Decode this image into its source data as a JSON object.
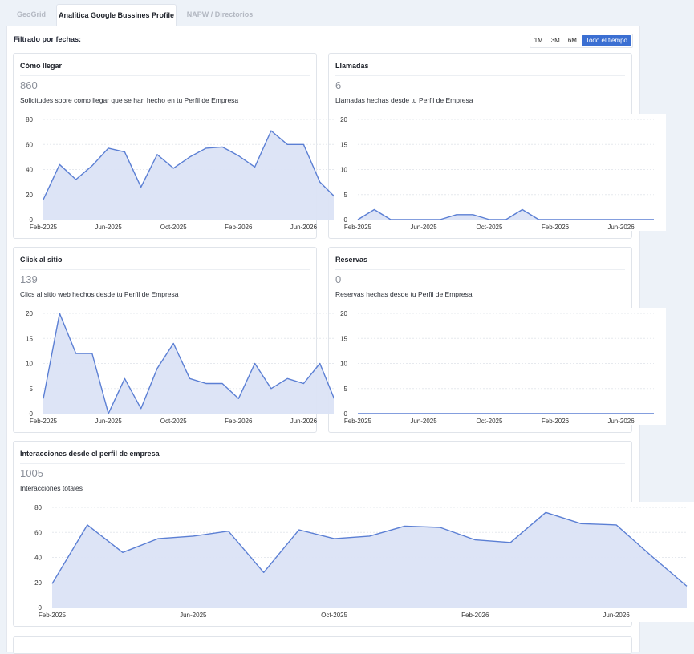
{
  "tabs": [
    {
      "label": "GeoGrid",
      "active": false
    },
    {
      "label": "Analítica Google Bussines Profile",
      "active": true
    },
    {
      "label": "NAPW / Directorios",
      "active": false
    }
  ],
  "filter": {
    "label": "Filtrado por fechas:",
    "periods": [
      "1M",
      "3M",
      "6M",
      "Todo el tiempo"
    ],
    "selected": "Todo el tiempo"
  },
  "colors": {
    "accent": "#3b6fd2",
    "line": "#5b7fd4",
    "fill": "#dbe3f5"
  },
  "cards": [
    {
      "title": "Cómo llegar",
      "value": "860",
      "description": "Solicitudes sobre como llegar que se han hecho en tu Perfil de Empresa"
    },
    {
      "title": "Llamadas",
      "value": "6",
      "description": "Llamadas hechas desde tu Perfil de Empresa"
    },
    {
      "title": "Click al sitio",
      "value": "139",
      "description": "Clics al sitio web hechos desde tu Perfil de Empresa"
    },
    {
      "title": "Reservas",
      "value": "0",
      "description": "Reservas hechas desde tu Perfil de Empresa"
    },
    {
      "title": "Interacciones desde el perfil de empresa",
      "value": "1005",
      "description": "Interacciones totales"
    }
  ],
  "chart_data": [
    {
      "type": "area",
      "title": "Cómo llegar",
      "x_tick_labels": [
        "Feb-2025",
        "Jun-2025",
        "Oct-2025",
        "Feb-2026",
        "Jun-2026"
      ],
      "ylim": [
        0,
        80
      ],
      "y_ticks": [
        0,
        20,
        40,
        60,
        80
      ],
      "values": [
        16,
        44,
        32,
        43,
        57,
        54,
        26,
        52,
        41,
        50,
        57,
        58,
        51,
        42,
        71,
        60,
        60,
        30,
        17
      ],
      "grid": true
    },
    {
      "type": "area",
      "title": "Llamadas",
      "x_tick_labels": [
        "Feb-2025",
        "Jun-2025",
        "Oct-2025",
        "Feb-2026",
        "Jun-2026"
      ],
      "ylim": [
        0,
        20
      ],
      "y_ticks": [
        0,
        5,
        10,
        15,
        20
      ],
      "values": [
        0,
        2,
        0,
        0,
        0,
        0,
        1,
        1,
        0,
        0,
        2,
        0,
        0,
        0,
        0,
        0,
        0,
        0,
        0
      ],
      "grid": true
    },
    {
      "type": "area",
      "title": "Click al sitio",
      "x_tick_labels": [
        "Feb-2025",
        "Jun-2025",
        "Oct-2025",
        "Feb-2026",
        "Jun-2026"
      ],
      "ylim": [
        0,
        20
      ],
      "y_ticks": [
        0,
        5,
        10,
        15,
        20
      ],
      "values": [
        3,
        20,
        12,
        12,
        0,
        7,
        1,
        9,
        14,
        7,
        6,
        6,
        3,
        10,
        5,
        7,
        6,
        10,
        2
      ],
      "grid": true
    },
    {
      "type": "area",
      "title": "Reservas",
      "x_tick_labels": [
        "Feb-2025",
        "Jun-2025",
        "Oct-2025",
        "Feb-2026",
        "Jun-2026"
      ],
      "ylim": [
        0,
        20
      ],
      "y_ticks": [
        0,
        5,
        10,
        15,
        20
      ],
      "values": [
        0,
        0,
        0,
        0,
        0,
        0,
        0,
        0,
        0,
        0,
        0,
        0,
        0,
        0,
        0,
        0,
        0,
        0,
        0
      ],
      "grid": true
    },
    {
      "type": "area",
      "title": "Interacciones desde el perfil de empresa",
      "x_tick_labels": [
        "Feb-2025",
        "Jun-2025",
        "Oct-2025",
        "Feb-2026",
        "Jun-2026"
      ],
      "ylim": [
        0,
        80
      ],
      "y_ticks": [
        0,
        20,
        40,
        60,
        80
      ],
      "values": [
        19,
        66,
        44,
        55,
        57,
        61,
        28,
        62,
        55,
        57,
        65,
        64,
        54,
        52,
        76,
        67,
        66,
        41,
        17
      ],
      "grid": true
    }
  ]
}
